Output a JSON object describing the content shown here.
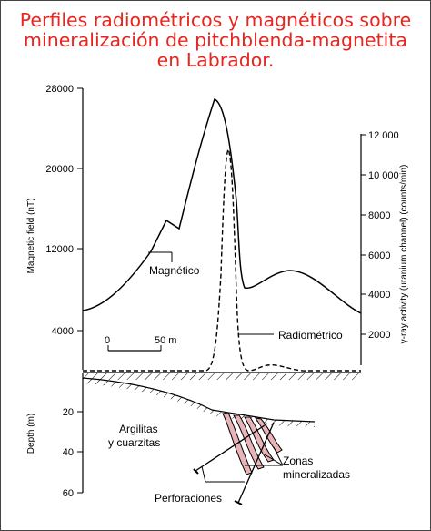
{
  "title": "Perfiles radiométricos y magnéticos sobre mineralización de pitchblenda-magnetita en Labrador.",
  "left_axis": {
    "label": "Magnetic field (nT)",
    "ticks": [
      "28000",
      "20000",
      "12000",
      "4000"
    ]
  },
  "right_axis": {
    "label": "γ-ray activity (uranium channel) (counts/min)",
    "ticks": [
      "12 000",
      "10 000",
      "8000",
      "6000",
      "4000",
      "2000"
    ]
  },
  "depth_axis": {
    "label": "Depth (m)",
    "ticks": [
      "20",
      "40",
      "60"
    ]
  },
  "scale_bar": {
    "start": "0",
    "end": "50 m"
  },
  "labels": {
    "magnetic": "Magnético",
    "radiometric": "Radiométrico",
    "rocks_line1": "Argilitas",
    "rocks_line2": "y cuarzitas",
    "zones_line1": "Zonas",
    "zones_line2": "mineralizadas",
    "drillholes": "Perforaciones"
  },
  "colors": {
    "title": "#e8261f",
    "ore": "#e9b4b8"
  }
}
